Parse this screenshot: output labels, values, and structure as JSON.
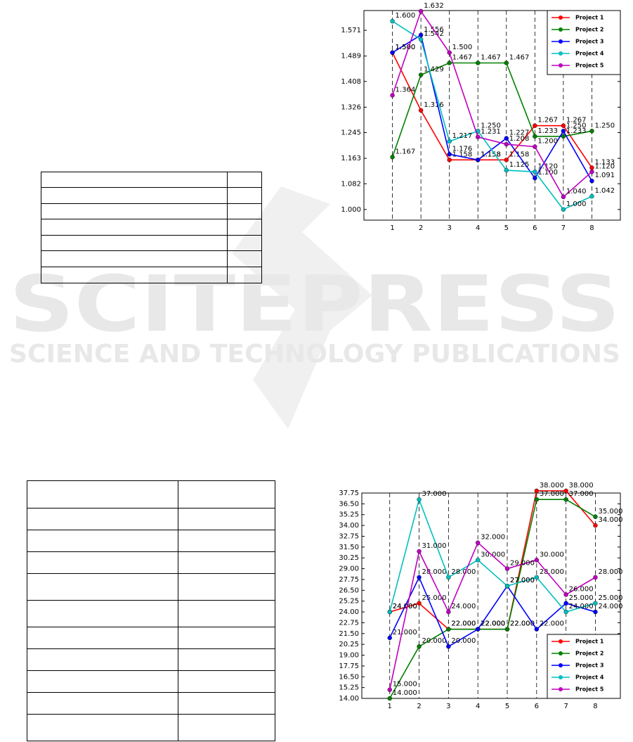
{
  "watermark": {
    "title": "SCITEPRESS",
    "subtitle": "SCIENCE AND TECHNOLOGY PUBLICATIONS"
  },
  "chart_data": [
    {
      "type": "line",
      "x": [
        1,
        2,
        3,
        4,
        5,
        6,
        7,
        8
      ],
      "xlim": [
        0,
        9
      ],
      "xticks": [
        1,
        2,
        3,
        4,
        5,
        6,
        7,
        8
      ],
      "ylim": [
        0.966,
        1.634
      ],
      "yticks": [
        {
          "value": 1,
          "label": "1.000"
        },
        1.082,
        1.163,
        1.245,
        1.326,
        1.408,
        1.489,
        1.571
      ],
      "grid": "x",
      "legend": "upper right",
      "series": [
        {
          "name": "Project 1",
          "color": "#ff0000",
          "values": [
            1.5,
            1.316,
            1.158,
            1.158,
            1.158,
            1.267,
            1.267,
            1.133
          ],
          "value_labels": [
            "1.500",
            "1.316",
            "1.158",
            "1.158",
            "1.158",
            "1.267",
            "1.267",
            "1.133"
          ]
        },
        {
          "name": "Project 2",
          "color": "#008000",
          "values": [
            1.167,
            1.429,
            1.467,
            1.467,
            1.467,
            1.233,
            1.233,
            1.25
          ],
          "value_labels": [
            "1.167",
            "1.429",
            "1.467",
            "1.467",
            "1.467",
            "1.233",
            "1.233",
            "1.250"
          ]
        },
        {
          "name": "Project 3",
          "color": "#0000ff",
          "values": [
            1.5,
            1.556,
            1.176,
            1.158,
            1.227,
            1.1,
            1.25,
            1.091
          ],
          "value_labels": [
            "1.500",
            "1.556",
            "1.176",
            "1.158",
            "1.227",
            "1.100",
            "1.250",
            "1.091"
          ]
        },
        {
          "name": "Project 4",
          "color": "#00bfbf",
          "values": [
            1.6,
            1.542,
            1.217,
            1.25,
            1.125,
            1.12,
            1,
            1.042
          ],
          "value_labels": [
            "1.600",
            "1.542",
            "1.217",
            "1.250",
            "1.125",
            "1.120",
            "1.000",
            "1.042"
          ]
        },
        {
          "name": "Project 5",
          "color": "#bf00bf",
          "values": [
            1.364,
            1.632,
            1.5,
            1.231,
            1.208,
            1.2,
            1.04,
            1.12
          ],
          "value_labels": [
            "1.364",
            "1.632",
            "1.500",
            "1.231",
            "1.208",
            "1.200",
            "1.040",
            "1.120"
          ]
        }
      ]
    },
    {
      "type": "line",
      "x": [
        1,
        2,
        3,
        4,
        5,
        6,
        7,
        8
      ],
      "xlim": [
        0.05,
        8.85
      ],
      "xticks": [
        1,
        2,
        3,
        4,
        5,
        6,
        7,
        8
      ],
      "ylim": [
        14,
        37.75
      ],
      "yticks": [
        {
          "value": 14,
          "label": "14.00"
        },
        15.25,
        {
          "value": 16.5,
          "label": "16.50"
        },
        17.75,
        {
          "value": 19,
          "label": "19.00"
        },
        20.25,
        {
          "value": 21.5,
          "label": "21.50"
        },
        22.75,
        {
          "value": 24,
          "label": "24.00"
        },
        25.25,
        {
          "value": 26.5,
          "label": "26.50"
        },
        27.75,
        {
          "value": 29,
          "label": "29.00"
        },
        30.25,
        {
          "value": 31.5,
          "label": "31.50"
        },
        32.75,
        {
          "value": 34,
          "label": "34.00"
        },
        35.25,
        {
          "value": 36.5,
          "label": "36.50"
        },
        37.75
      ],
      "grid": "x",
      "legend": "lower right",
      "series": [
        {
          "name": "Project 1",
          "color": "#ff0000",
          "values": [
            24,
            25,
            22,
            22,
            22,
            38,
            38,
            34
          ],
          "value_labels": [
            "24.000",
            "25.000",
            "22.000",
            "22.000",
            "22.000",
            "38.000",
            "38.000",
            "34.000"
          ]
        },
        {
          "name": "Project 2",
          "color": "#008000",
          "values": [
            14,
            20,
            22,
            22,
            22,
            37,
            37,
            35
          ],
          "value_labels": [
            "14.000",
            "20.000",
            "22.000",
            "22.000",
            "22.000",
            "37.000",
            "37.000",
            "35.000"
          ]
        },
        {
          "name": "Project 3",
          "color": "#0000ff",
          "values": [
            21,
            28,
            20,
            22,
            27,
            22,
            25,
            24
          ],
          "value_labels": [
            "21.000",
            "28.000",
            "20.000",
            "22.000",
            "27.000",
            "22.000",
            "25.000",
            "24.000"
          ]
        },
        {
          "name": "Project 4",
          "color": "#00bfbf",
          "values": [
            24,
            37,
            28,
            30,
            27,
            28,
            24,
            25
          ],
          "value_labels": [
            "24.000",
            "37.000",
            "28.000",
            "30.000",
            "27.000",
            "28.000",
            "24.000",
            "25.000"
          ]
        },
        {
          "name": "Project 5",
          "color": "#bf00bf",
          "values": [
            15,
            31,
            24,
            32,
            29,
            30,
            26,
            28
          ],
          "value_labels": [
            "15.000",
            "31.000",
            "24.000",
            "32.000",
            "29.000",
            "30.000",
            "26.000",
            "28.000"
          ]
        }
      ]
    }
  ]
}
